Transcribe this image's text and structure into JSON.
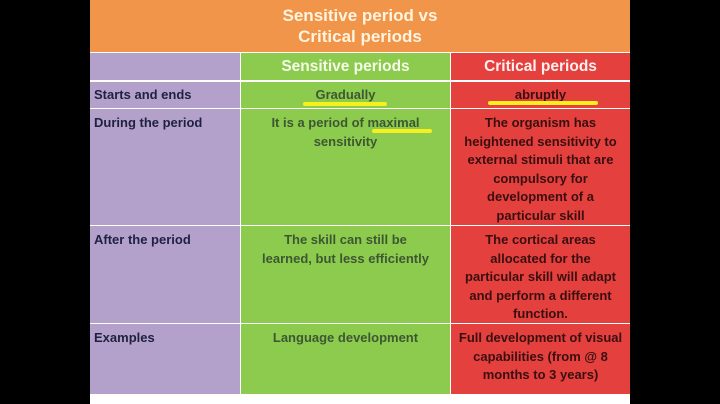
{
  "title": {
    "line1": "Sensitive period vs",
    "line2": "Critical periods"
  },
  "columns": [
    "",
    "Sensitive periods",
    "Critical periods"
  ],
  "rows": [
    {
      "label": "Starts and ends",
      "sensitive": "Gradually",
      "critical": "abruptly"
    },
    {
      "label": "During the period",
      "sensitive": "It is a period of maximal sensitivity",
      "critical": "The organism has heightened sensitivity to external stimuli that are compulsory for development of a particular skill"
    },
    {
      "label": "After the period",
      "sensitive": "The skill can still be learned, but less efficiently",
      "critical": "The cortical areas allocated for the particular skill will adapt and perform a different function."
    },
    {
      "label": "Examples",
      "sensitive": "Language development",
      "critical": "Full development of visual capabilities (from @ 8 months to 3 years)"
    }
  ],
  "colors": {
    "title": "#F0954A",
    "label_col": "#B3A1CB",
    "sensitive_col": "#8DCB4E",
    "critical_col": "#E3403E",
    "highlight": "#F5F01E"
  }
}
